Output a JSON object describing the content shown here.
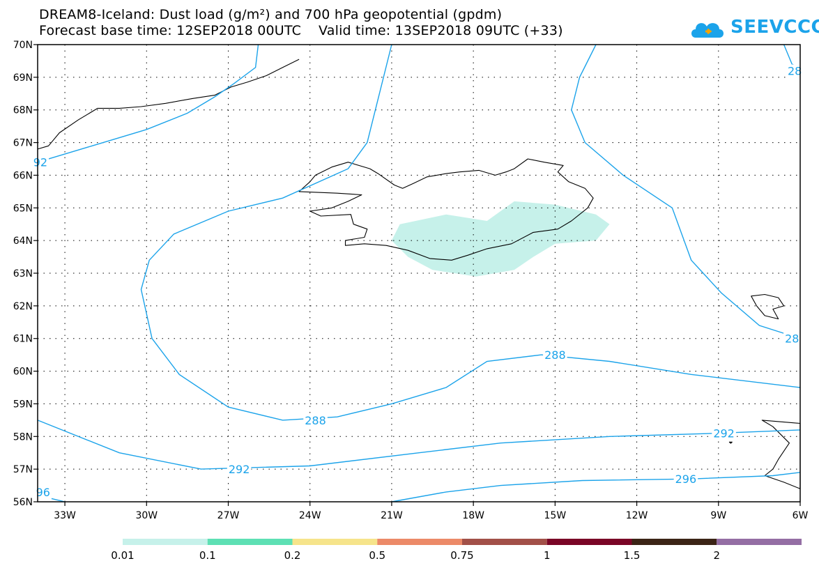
{
  "header": {
    "line1": "DREAM8-Iceland: Dust load (g/m²) and 700 hPa geopotential (gpdm)",
    "line2": "Forecast base time: 12SEP2018 00UTC    Valid time: 13SEP2018 09UTC (+33)"
  },
  "logo": {
    "text": "SEEVCCC",
    "icon": "cloud-icon"
  },
  "colors": {
    "contour": "#1ba3ea",
    "coast": "#000000",
    "dust": "#c6f1ea",
    "grid": "#000000"
  },
  "chart_data": {
    "type": "map",
    "lon_range": [
      -34,
      -6
    ],
    "lat_range": [
      56,
      70
    ],
    "x_ticks": [
      {
        "value": -33,
        "label": "33W"
      },
      {
        "value": -30,
        "label": "30W"
      },
      {
        "value": -27,
        "label": "27W"
      },
      {
        "value": -24,
        "label": "24W"
      },
      {
        "value": -21,
        "label": "21W"
      },
      {
        "value": -18,
        "label": "18W"
      },
      {
        "value": -15,
        "label": "15W"
      },
      {
        "value": -12,
        "label": "12W"
      },
      {
        "value": -9,
        "label": "9W"
      },
      {
        "value": -6,
        "label": "6W"
      }
    ],
    "y_ticks": [
      {
        "value": 56,
        "label": "56N"
      },
      {
        "value": 57,
        "label": "57N"
      },
      {
        "value": 58,
        "label": "58N"
      },
      {
        "value": 59,
        "label": "59N"
      },
      {
        "value": 60,
        "label": "60N"
      },
      {
        "value": 61,
        "label": "61N"
      },
      {
        "value": 62,
        "label": "62N"
      },
      {
        "value": 63,
        "label": "63N"
      },
      {
        "value": 64,
        "label": "64N"
      },
      {
        "value": 65,
        "label": "65N"
      },
      {
        "value": 66,
        "label": "66N"
      },
      {
        "value": 67,
        "label": "67N"
      },
      {
        "value": 68,
        "label": "68N"
      },
      {
        "value": 69,
        "label": "69N"
      },
      {
        "value": 70,
        "label": "70N"
      }
    ],
    "grid": true,
    "contours": [
      {
        "level": 292,
        "points": [
          [
            -34.0,
            66.4
          ],
          [
            -32.0,
            66.9
          ],
          [
            -30.0,
            67.4
          ],
          [
            -28.5,
            67.9
          ],
          [
            -27.5,
            68.4
          ],
          [
            -26.8,
            68.8
          ],
          [
            -26.0,
            69.3
          ],
          [
            -25.9,
            70.0
          ]
        ]
      },
      {
        "level": 288,
        "points": [
          [
            -21.0,
            70.0
          ],
          [
            -21.3,
            69.0
          ],
          [
            -21.6,
            68.0
          ],
          [
            -21.9,
            67.0
          ],
          [
            -22.6,
            66.2
          ],
          [
            -25.0,
            65.3
          ],
          [
            -27.0,
            64.9
          ],
          [
            -29.0,
            64.2
          ],
          [
            -29.9,
            63.4
          ],
          [
            -30.2,
            62.5
          ],
          [
            -29.8,
            61.0
          ],
          [
            -28.8,
            59.9
          ],
          [
            -27.0,
            58.9
          ],
          [
            -25.0,
            58.5
          ],
          [
            -23.0,
            58.6
          ],
          [
            -21.0,
            59.0
          ],
          [
            -19.0,
            59.5
          ],
          [
            -17.5,
            60.3
          ],
          [
            -15.5,
            60.5
          ],
          [
            -13.0,
            60.3
          ],
          [
            -10.0,
            59.9
          ],
          [
            -6.0,
            59.5
          ]
        ]
      },
      {
        "level": 288,
        "points": [
          [
            -13.5,
            70.0
          ],
          [
            -14.1,
            69.0
          ],
          [
            -14.4,
            68.0
          ],
          [
            -13.9,
            67.0
          ],
          [
            -12.5,
            66.0
          ],
          [
            -10.7,
            65.0
          ],
          [
            -10.0,
            63.4
          ],
          [
            -8.9,
            62.4
          ],
          [
            -7.5,
            61.4
          ],
          [
            -6.0,
            61.0
          ]
        ]
      },
      {
        "level": 288,
        "points": [
          [
            -6.6,
            70.0
          ],
          [
            -6.3,
            69.4
          ],
          [
            -6.0,
            69.3
          ]
        ]
      },
      {
        "level": 292,
        "points": [
          [
            -34.0,
            58.5
          ],
          [
            -31.0,
            57.5
          ],
          [
            -28.0,
            57.0
          ],
          [
            -24.0,
            57.1
          ],
          [
            -20.0,
            57.5
          ],
          [
            -17.0,
            57.8
          ],
          [
            -13.0,
            58.0
          ],
          [
            -9.0,
            58.1
          ],
          [
            -6.0,
            58.2
          ]
        ]
      },
      {
        "level": 296,
        "points": [
          [
            -34.0,
            56.3
          ],
          [
            -33.5,
            56.1
          ],
          [
            -33.0,
            56.0
          ]
        ]
      },
      {
        "level": 296,
        "points": [
          [
            -21.0,
            56.0
          ],
          [
            -19.0,
            56.3
          ],
          [
            -17.0,
            56.5
          ],
          [
            -14.0,
            56.65
          ],
          [
            -10.0,
            56.7
          ],
          [
            -7.0,
            56.8
          ],
          [
            -6.0,
            56.9
          ]
        ]
      }
    ],
    "contour_labels": [
      {
        "text": "288",
        "lon": -23.8,
        "lat": 58.5
      },
      {
        "text": "288",
        "lon": -15.0,
        "lat": 60.5
      },
      {
        "text": "292",
        "lon": -26.6,
        "lat": 57.0
      },
      {
        "text": "292",
        "lon": -8.8,
        "lat": 58.1
      },
      {
        "text": "296",
        "lon": -10.2,
        "lat": 56.7
      },
      {
        "text": "28",
        "lon": -6.3,
        "lat": 61.0
      },
      {
        "text": "28",
        "lon": -6.2,
        "lat": 69.2
      },
      {
        "text": "92",
        "lon": -33.9,
        "lat": 66.4
      },
      {
        "text": "96",
        "lon": -33.8,
        "lat": 56.3
      }
    ],
    "dust_area": {
      "value_range": [
        0.01,
        0.1
      ],
      "points": [
        [
          -20.7,
          64.5
        ],
        [
          -19.0,
          64.8
        ],
        [
          -17.5,
          64.6
        ],
        [
          -16.5,
          65.2
        ],
        [
          -15.0,
          65.1
        ],
        [
          -13.5,
          64.8
        ],
        [
          -13.0,
          64.5
        ],
        [
          -13.5,
          64.0
        ],
        [
          -15.0,
          63.9
        ],
        [
          -15.8,
          63.5
        ],
        [
          -16.5,
          63.1
        ],
        [
          -17.9,
          62.9
        ],
        [
          -19.5,
          63.1
        ],
        [
          -20.4,
          63.5
        ],
        [
          -21.0,
          64.0
        ]
      ]
    },
    "colorbar": {
      "colors": [
        "#c6f1ea",
        "#5ee0b4",
        "#f6e48b",
        "#ec8a68",
        "#a25048",
        "#7a0526",
        "#3b2416",
        "#946ea4"
      ],
      "tick_labels": [
        "0.01",
        "0.1",
        "0.2",
        "0.5",
        "0.75",
        "1",
        "1.5",
        "2"
      ]
    }
  }
}
